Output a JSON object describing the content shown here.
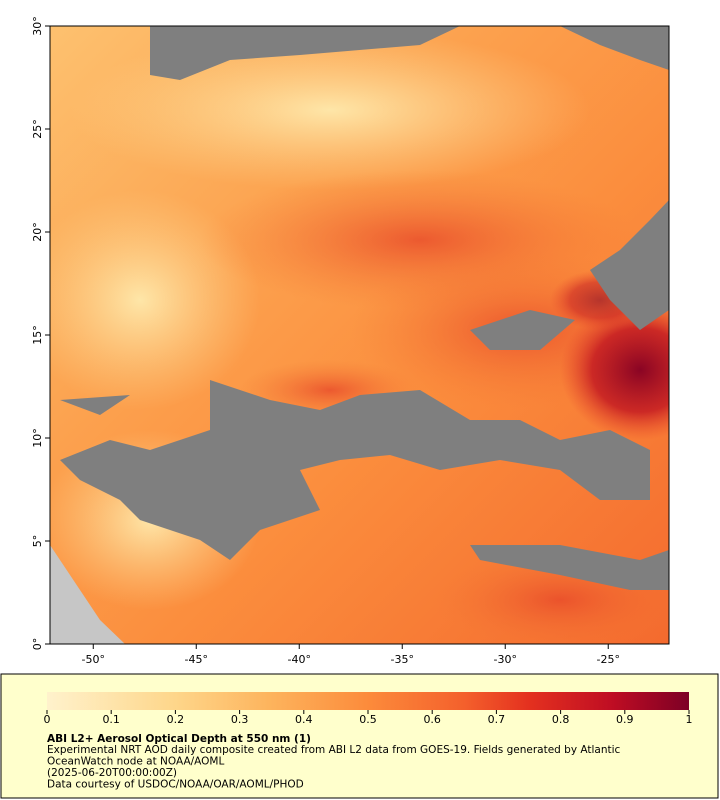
{
  "map": {
    "lat_range": [
      0,
      30
    ],
    "lon_range": [
      -52.1,
      -22.05
    ],
    "lat_ticks": [
      {
        "value": 0,
        "label": "0°"
      },
      {
        "value": 5,
        "label": "5°"
      },
      {
        "value": 10,
        "label": "10°"
      },
      {
        "value": 15,
        "label": "15°"
      },
      {
        "value": 20,
        "label": "20°"
      },
      {
        "value": 25,
        "label": "25°"
      },
      {
        "value": 30,
        "label": "30°"
      }
    ],
    "lon_ticks": [
      {
        "value": -50,
        "label": "-50°"
      },
      {
        "value": -45,
        "label": "-45°"
      },
      {
        "value": -40,
        "label": "-40°"
      },
      {
        "value": -35,
        "label": "-35°"
      },
      {
        "value": -30,
        "label": "-30°"
      },
      {
        "value": -25,
        "label": "-25°"
      }
    ]
  },
  "colorbar": {
    "range": [
      0,
      1
    ],
    "ticks": [
      0,
      0.1,
      0.2,
      0.3,
      0.4,
      0.5,
      0.6,
      0.7,
      0.8,
      0.9,
      1
    ]
  },
  "caption": {
    "title": "ABI L2+ Aerosol Optical Depth at 550 nm (1)",
    "lines": [
      "Experimental NRT AOD daily composite created from ABI L2 data from GOES-19. Fields generated by Atlantic",
      "OceanWatch node at NOAA/AOML",
      "(2025-06-20T00:00:00Z)",
      "Data courtesy of USDOC/NOAA/OAR/AOML/PHOD"
    ]
  }
}
